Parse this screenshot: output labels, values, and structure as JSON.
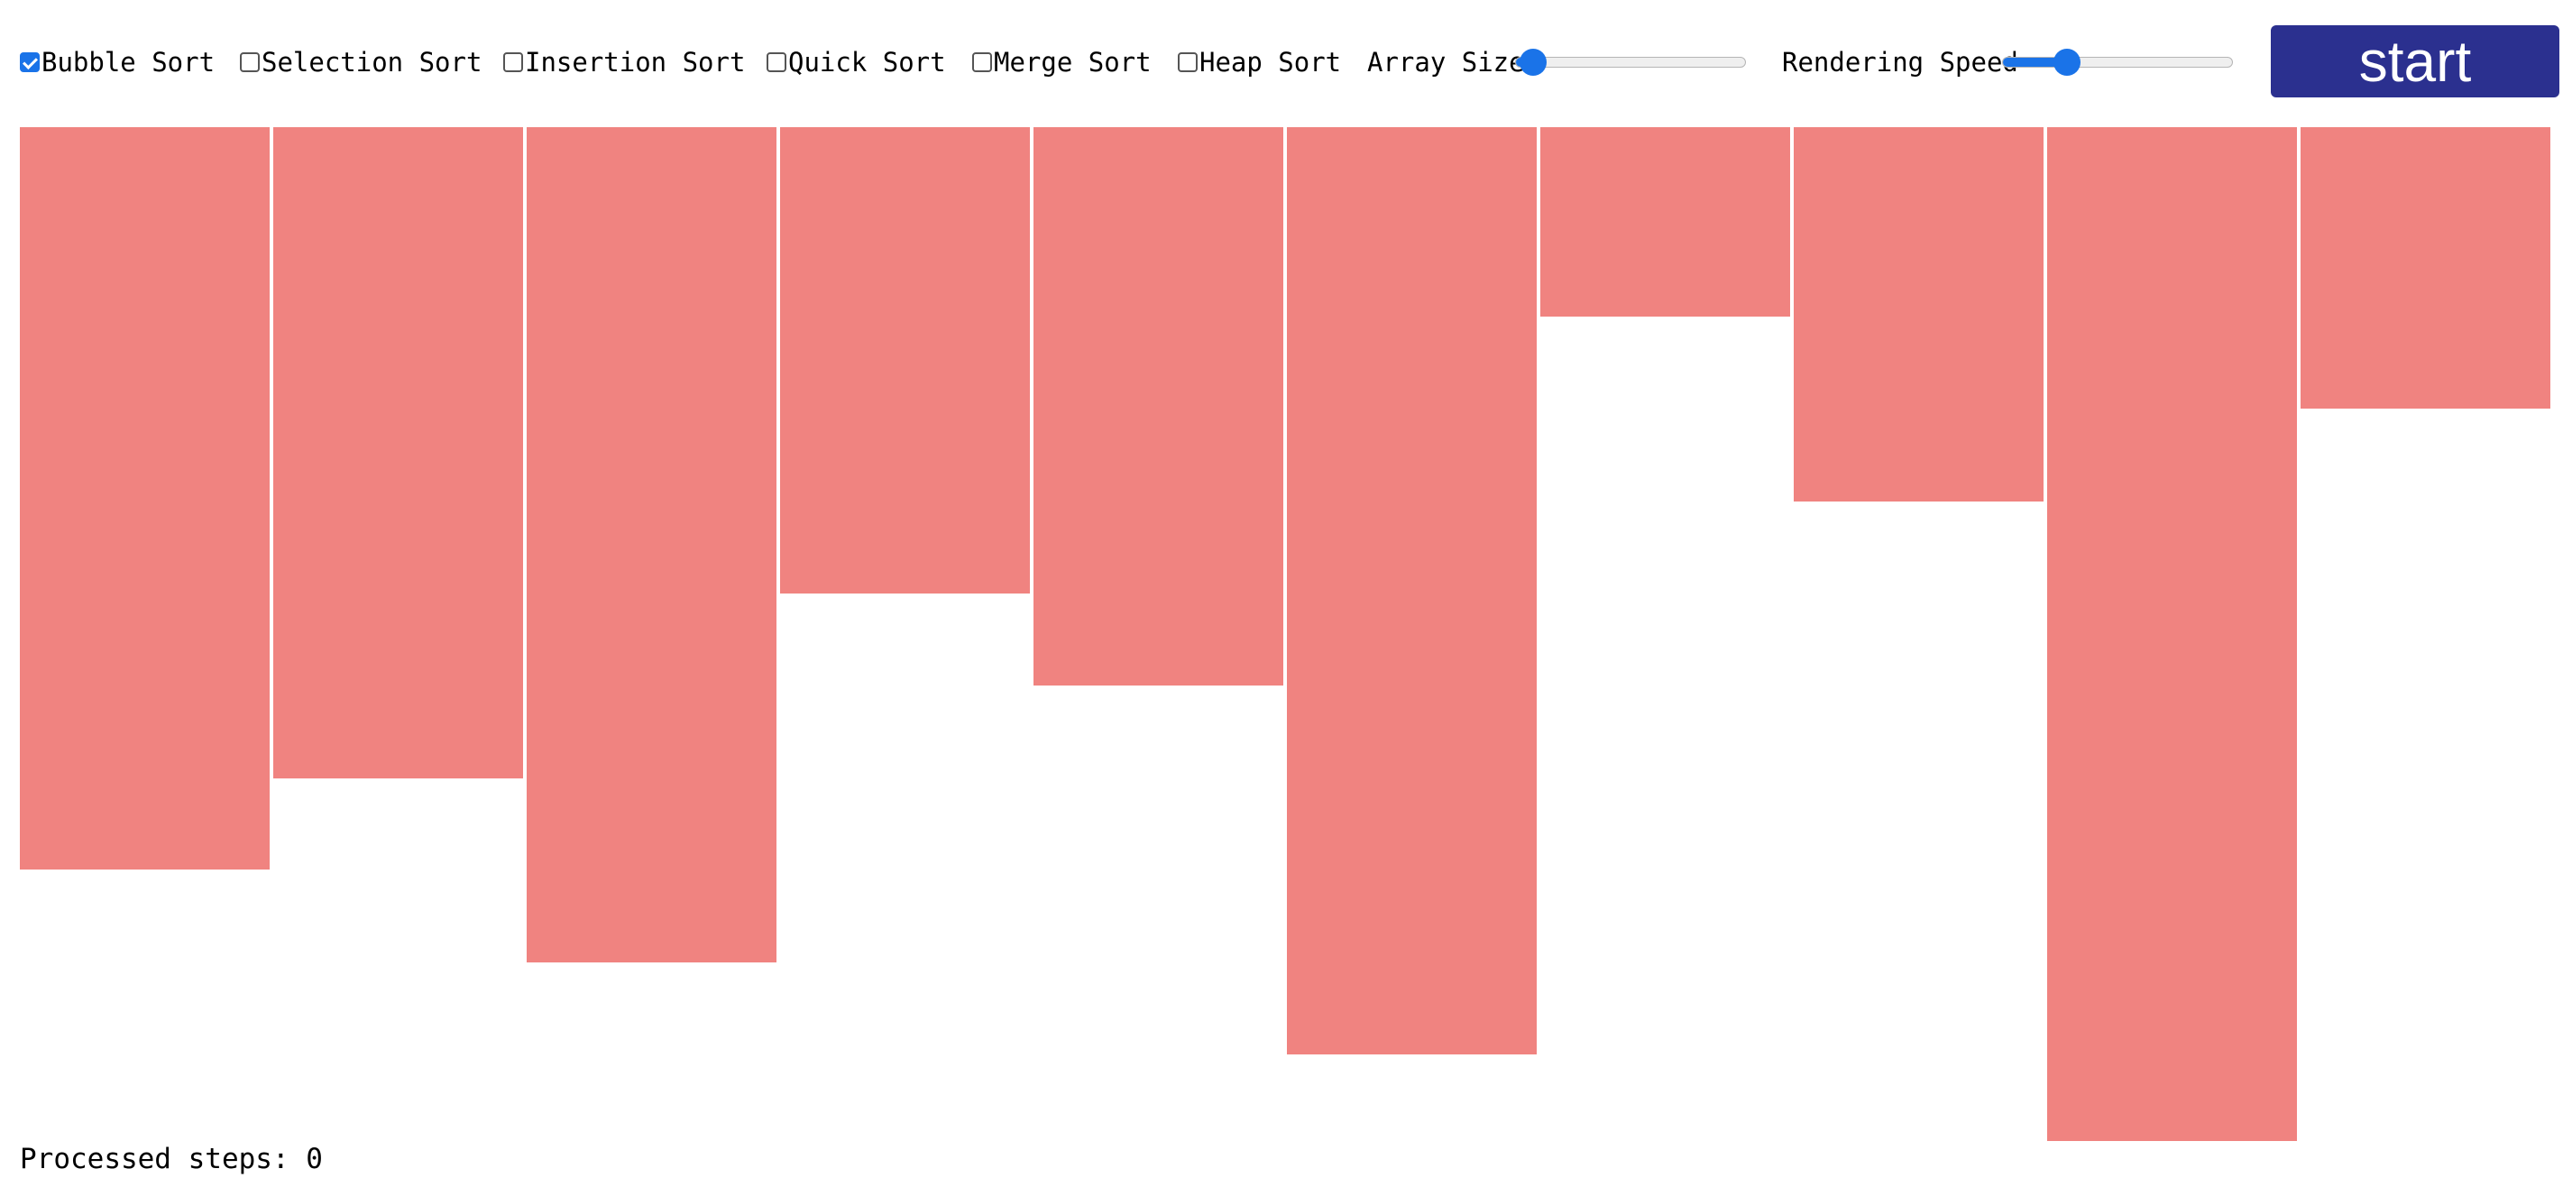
{
  "toolbar": {
    "algorithms": [
      {
        "label": "Bubble Sort",
        "checked": true
      },
      {
        "label": "Selection Sort",
        "checked": false
      },
      {
        "label": "Insertion Sort",
        "checked": false
      },
      {
        "label": "Quick Sort",
        "checked": false
      },
      {
        "label": "Merge Sort",
        "checked": false
      },
      {
        "label": "Heap Sort",
        "checked": false
      }
    ],
    "array_size": {
      "label": "Array Size",
      "value_fraction": 0.08
    },
    "rendering_speed": {
      "label": "Rendering Speed",
      "value_fraction": 0.28
    },
    "start_label": "start"
  },
  "bars": {
    "color": "#f08380",
    "values": [
      0.732,
      0.642,
      0.824,
      0.46,
      0.551,
      0.915,
      0.187,
      0.369,
      1.0,
      0.278
    ]
  },
  "status": {
    "steps_text": "Processed steps: 0"
  }
}
